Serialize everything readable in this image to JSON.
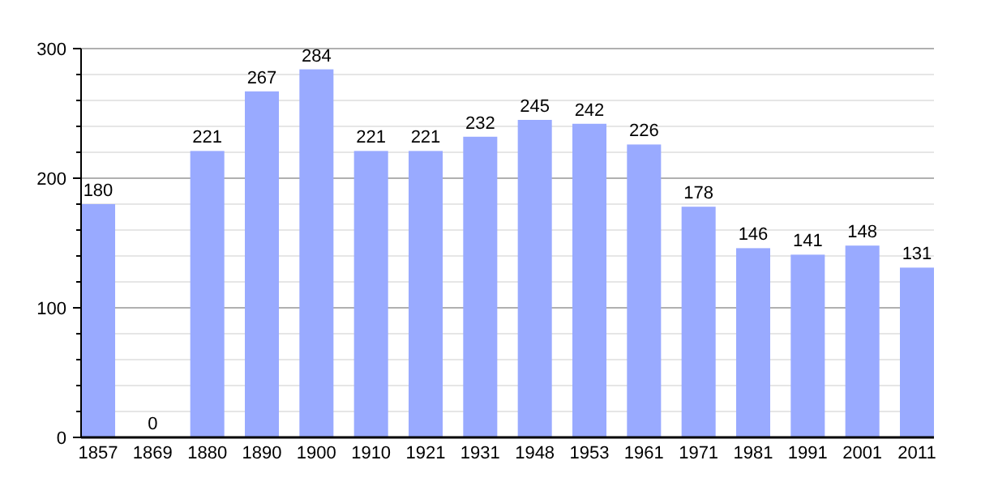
{
  "chart_data": {
    "type": "bar",
    "categories": [
      "1857",
      "1869",
      "1880",
      "1890",
      "1900",
      "1910",
      "1921",
      "1931",
      "1948",
      "1953",
      "1961",
      "1971",
      "1981",
      "1991",
      "2001",
      "2011"
    ],
    "values": [
      180,
      0,
      221,
      267,
      284,
      221,
      221,
      232,
      245,
      242,
      226,
      178,
      146,
      141,
      148,
      131
    ],
    "color": "#99aaff",
    "ylim": [
      0,
      300
    ],
    "yticks": [
      0,
      {
        "value": 20,
        "label": null
      },
      {
        "value": 40,
        "label": null
      },
      {
        "value": 60,
        "label": null
      },
      {
        "value": 80,
        "label": null
      },
      100,
      {
        "value": 120,
        "label": null
      },
      {
        "value": 140,
        "label": null
      },
      {
        "value": 160,
        "label": null
      },
      {
        "value": 180,
        "label": null
      },
      200,
      {
        "value": 220,
        "label": null
      },
      {
        "value": 240,
        "label": null
      },
      {
        "value": 260,
        "label": null
      },
      {
        "value": 280,
        "label": null
      },
      300
    ],
    "grid": true,
    "data_labels": true
  }
}
